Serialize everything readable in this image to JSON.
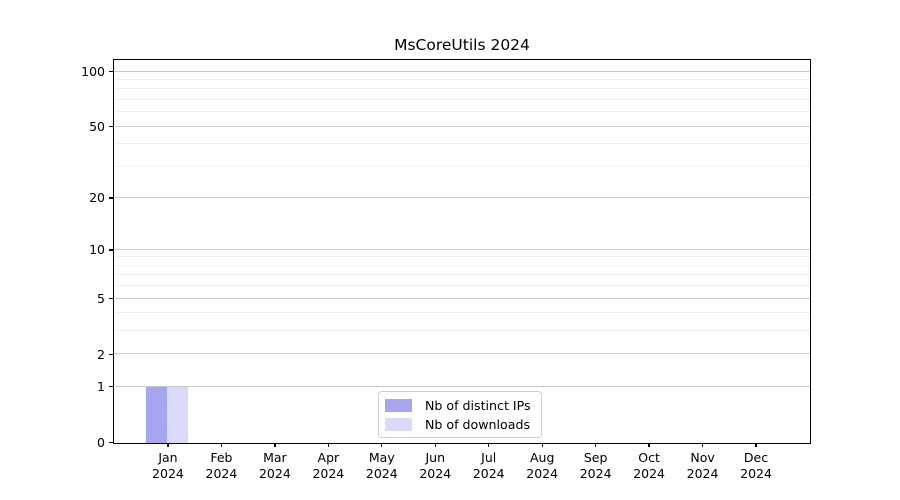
{
  "chart_data": {
    "type": "bar",
    "title": "MsCoreUtils 2024",
    "categories": [
      "Jan",
      "Feb",
      "Mar",
      "Apr",
      "May",
      "Jun",
      "Jul",
      "Aug",
      "Sep",
      "Oct",
      "Nov",
      "Dec"
    ],
    "x_tick_year": "2024",
    "series": [
      {
        "name": "Nb of distinct IPs",
        "color": "#a5a5f2",
        "values": [
          1,
          0,
          0,
          0,
          0,
          0,
          0,
          0,
          0,
          0,
          0,
          0
        ]
      },
      {
        "name": "Nb of downloads",
        "color": "#dadaf8",
        "values": [
          1,
          0,
          0,
          0,
          0,
          0,
          0,
          0,
          0,
          0,
          0,
          0
        ]
      }
    ],
    "xlabel": "",
    "ylabel": "",
    "yticks": [
      0,
      1,
      2,
      5,
      10,
      20,
      50,
      100
    ],
    "ylim": [
      0,
      115
    ],
    "yscale": "log1p",
    "grid": "horizontal-major-and-minor",
    "legend_position": "inside-bottom-center",
    "colors": {
      "major_grid": "#c9c9c9",
      "minor_grid": "#f0f0f0",
      "spine": "#000000",
      "text": "#000000",
      "legend_border": "#cccccc",
      "background": "#ffffff"
    }
  }
}
